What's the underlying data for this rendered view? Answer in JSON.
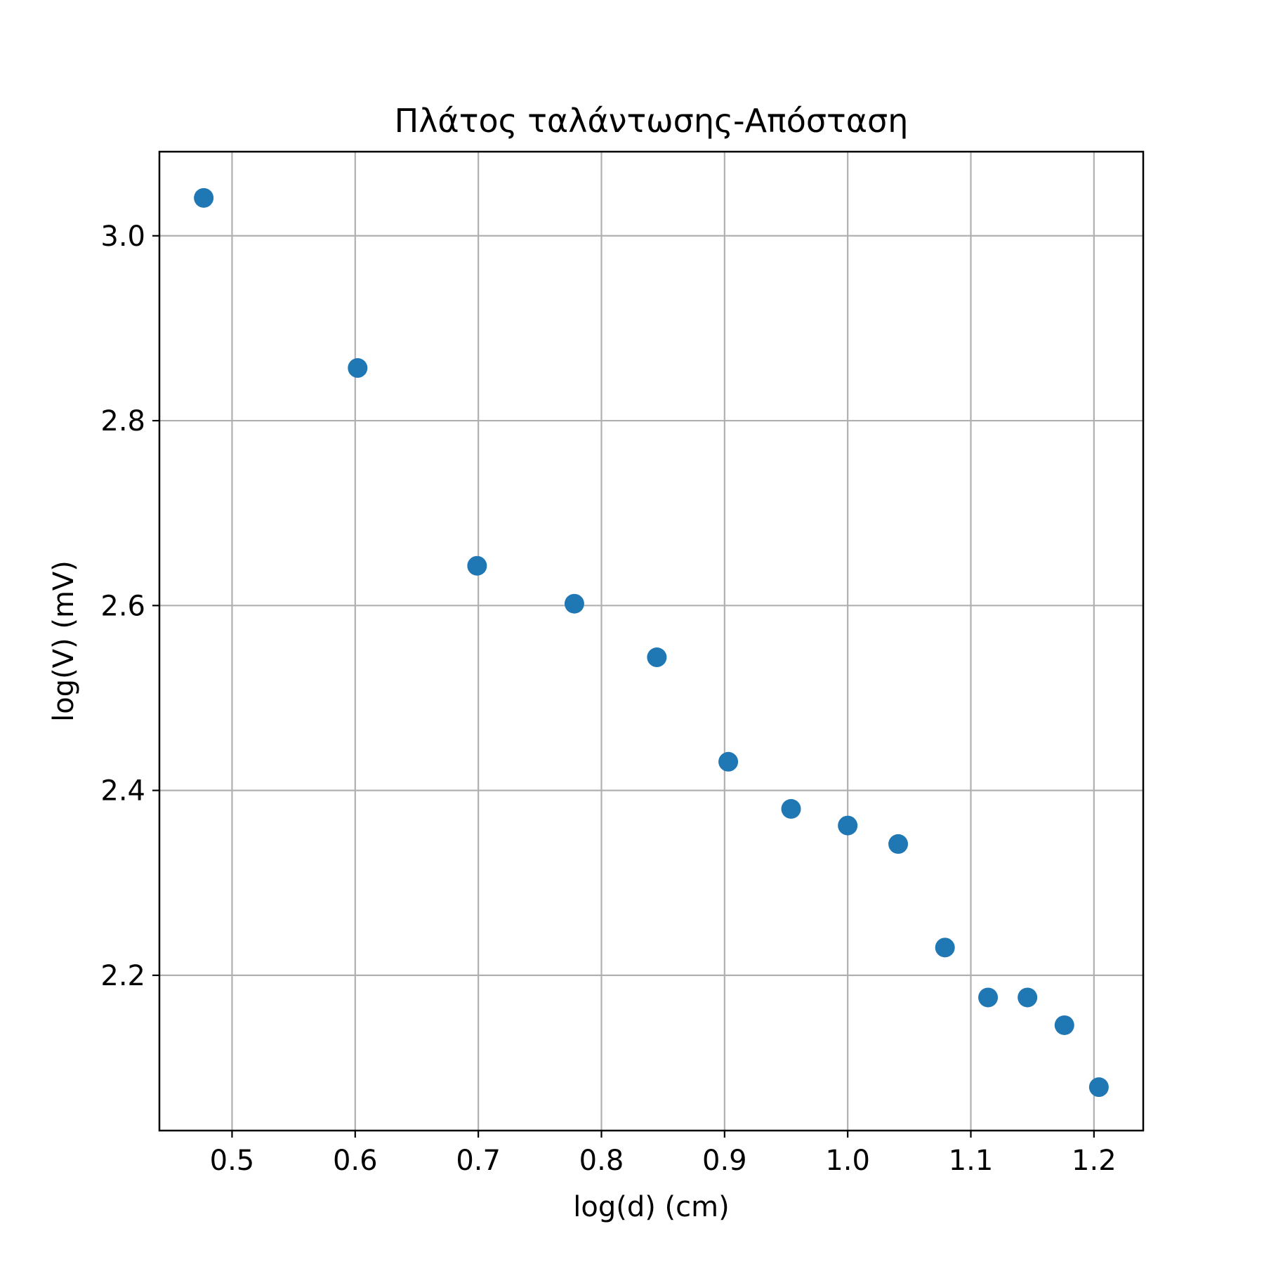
{
  "chart_data": {
    "type": "scatter",
    "title": "Πλάτος ταλάντωσης-Απόσταση",
    "xlabel": "log(d) (cm)",
    "ylabel": "log(V) (mV)",
    "xlim": [
      0.441,
      1.24
    ],
    "ylim": [
      2.032,
      3.091
    ],
    "xticks": [
      0.5,
      0.6,
      0.7,
      0.8,
      0.9,
      1.0,
      1.1,
      1.2
    ],
    "xtick_labels": [
      "0.5",
      "0.6",
      "0.7",
      "0.8",
      "0.9",
      "1.0",
      "1.1",
      "1.2"
    ],
    "yticks": [
      2.2,
      2.4,
      2.6,
      2.8,
      3.0
    ],
    "ytick_labels": [
      "2.2",
      "2.4",
      "2.6",
      "2.8",
      "3.0"
    ],
    "grid": true,
    "marker_color": "#1f77b4",
    "points": [
      {
        "x": 0.477,
        "y": 3.041
      },
      {
        "x": 0.602,
        "y": 2.857
      },
      {
        "x": 0.699,
        "y": 2.643
      },
      {
        "x": 0.778,
        "y": 2.602
      },
      {
        "x": 0.845,
        "y": 2.544
      },
      {
        "x": 0.903,
        "y": 2.431
      },
      {
        "x": 0.954,
        "y": 2.38
      },
      {
        "x": 1.0,
        "y": 2.362
      },
      {
        "x": 1.041,
        "y": 2.342
      },
      {
        "x": 1.079,
        "y": 2.23
      },
      {
        "x": 1.114,
        "y": 2.176
      },
      {
        "x": 1.146,
        "y": 2.176
      },
      {
        "x": 1.176,
        "y": 2.146
      },
      {
        "x": 1.204,
        "y": 2.079
      }
    ]
  }
}
